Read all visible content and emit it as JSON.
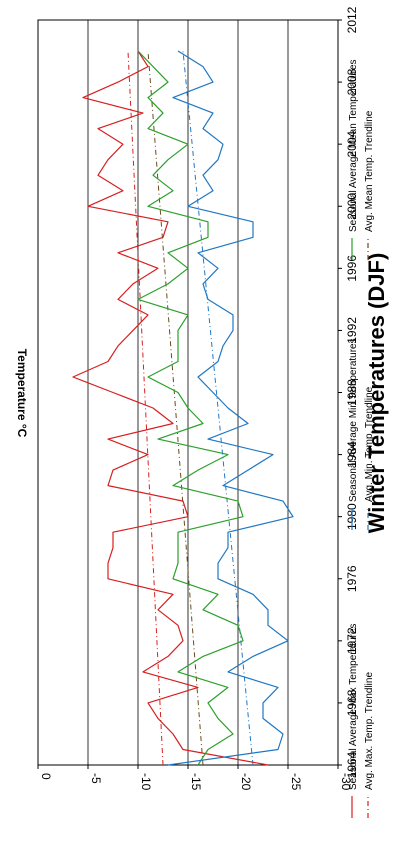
{
  "chart_data": {
    "type": "line",
    "title": "Winter Temperatures (DJF)",
    "ylabel": "Temperature °C",
    "xlabel": "",
    "xlim": [
      1964,
      2012
    ],
    "ylim": [
      -30,
      0
    ],
    "x_ticks": [
      1964,
      1968,
      1972,
      1976,
      1980,
      1984,
      1988,
      1992,
      1996,
      2000,
      2004,
      2008,
      2012
    ],
    "y_ticks": [
      0,
      -5,
      -10,
      -15,
      -20,
      -25,
      -30
    ],
    "y_tick_labels": [
      "0",
      "-5",
      "-10",
      "-15",
      "-20",
      "-25",
      "-30"
    ],
    "grid_lines_y": [
      -5,
      -10,
      -15,
      -20,
      -25
    ],
    "legend_position": "bottom",
    "x": [
      1964,
      1965,
      1966,
      1967,
      1968,
      1969,
      1970,
      1971,
      1972,
      1973,
      1974,
      1975,
      1976,
      1977,
      1978,
      1979,
      1980,
      1981,
      1982,
      1983,
      1984,
      1985,
      1986,
      1987,
      1988,
      1989,
      1990,
      1991,
      1992,
      1993,
      1994,
      1995,
      1996,
      1997,
      1998,
      1999,
      2000,
      2001,
      2002,
      2003,
      2004,
      2005,
      2006,
      2007,
      2008,
      2009,
      2010
    ],
    "series": [
      {
        "name": "Seasonal Average Max Temperatures",
        "color": "#d62020",
        "style": "solid",
        "values": [
          -23,
          -14.5,
          -13.5,
          -12,
          -11,
          -16,
          -10.5,
          -13,
          -14.5,
          -14,
          -12,
          -13.5,
          -7,
          -7,
          -7.5,
          -7.5,
          -15,
          -14.5,
          -7,
          -7.5,
          -11,
          -7,
          -13.5,
          -11.5,
          -7.5,
          -3.5,
          -7,
          -8,
          -9.5,
          -11,
          -8,
          -9.5,
          -12,
          -8,
          -12.5,
          -13,
          -5,
          -8.5,
          -6,
          -7,
          -8.5,
          -6,
          -10.5,
          -4.5,
          -8,
          -11,
          -10
        ]
      },
      {
        "name": "Seasonal Average Mean Temperatures",
        "color": "#2ca02c",
        "style": "solid",
        "values": [
          -16,
          -17,
          -19.5,
          -18,
          -17,
          -19,
          -14,
          -16.5,
          -20.5,
          -20,
          -16.5,
          -18,
          -13.5,
          -14,
          -14,
          -14,
          -20.5,
          -20,
          -13.5,
          -16,
          -19,
          -12,
          -16.5,
          -15,
          -14,
          -11,
          -14,
          -14,
          -14,
          -15,
          -10,
          -13,
          -15,
          -13,
          -17,
          -17,
          -11,
          -13.5,
          -11.5,
          -13,
          -15,
          -11,
          -12.5,
          -11,
          -13,
          -11.5,
          -10
        ]
      },
      {
        "name": "Seasonal Average Min Temperatures",
        "color": "#1f77c4",
        "style": "solid",
        "values": [
          -13,
          -24,
          -24.5,
          -22.5,
          -22.5,
          -24,
          -19,
          -21.5,
          -25,
          -23,
          -23,
          -21.5,
          -18,
          -18,
          -19,
          -19,
          -25.5,
          -24.5,
          -18.5,
          -21,
          -23.5,
          -17,
          -21,
          -19,
          -17.5,
          -16,
          -18,
          -18.5,
          -19.5,
          -19.5,
          -17,
          -16.5,
          -18,
          -16,
          -21.5,
          -21.5,
          -15,
          -17.5,
          -16.5,
          -18,
          -18.5,
          -16.5,
          -17.5,
          -13.5,
          -17.5,
          -16.5,
          -14
        ]
      }
    ],
    "trendlines": [
      {
        "name": "Avg. Max. Temp. Trendline",
        "color": "#d62020",
        "style": "dash-dot",
        "x": [
          1964,
          2010
        ],
        "values": [
          -12.5,
          -9.0
        ]
      },
      {
        "name": "Avg. Mean Temp. Trendline",
        "color": "#6b4a1a",
        "style": "dash-dot",
        "x": [
          1964,
          2010
        ],
        "values": [
          -16.5,
          -11.0
        ]
      },
      {
        "name": "Avg. Min. Temp. Trendline",
        "color": "#1f77c4",
        "style": "dash-dot",
        "x": [
          1964,
          2010
        ],
        "values": [
          -21.5,
          -14.5
        ]
      }
    ]
  }
}
